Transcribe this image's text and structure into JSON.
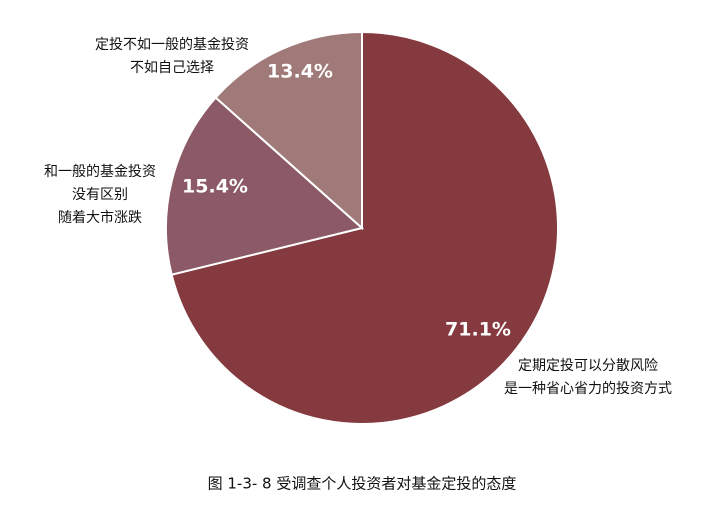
{
  "chart_data": {
    "type": "pie",
    "caption": "图 1-3- 8 受调查个人投资者对基金定投的态度",
    "categories": [
      [
        "定期定投可以分散风险",
        "是一种省心省力的投资方式"
      ],
      [
        "和一般的基金投资",
        "没有区别",
        "随着大市涨跌"
      ],
      [
        "定投不如一般的基金投资",
        "不如自己选择"
      ]
    ],
    "values": [
      71.1,
      15.4,
      13.4
    ],
    "value_labels": [
      "71.1%",
      "15.4%",
      "13.4%"
    ],
    "colors": [
      "#843a3e",
      "#8c5a66",
      "#a07a78"
    ]
  }
}
